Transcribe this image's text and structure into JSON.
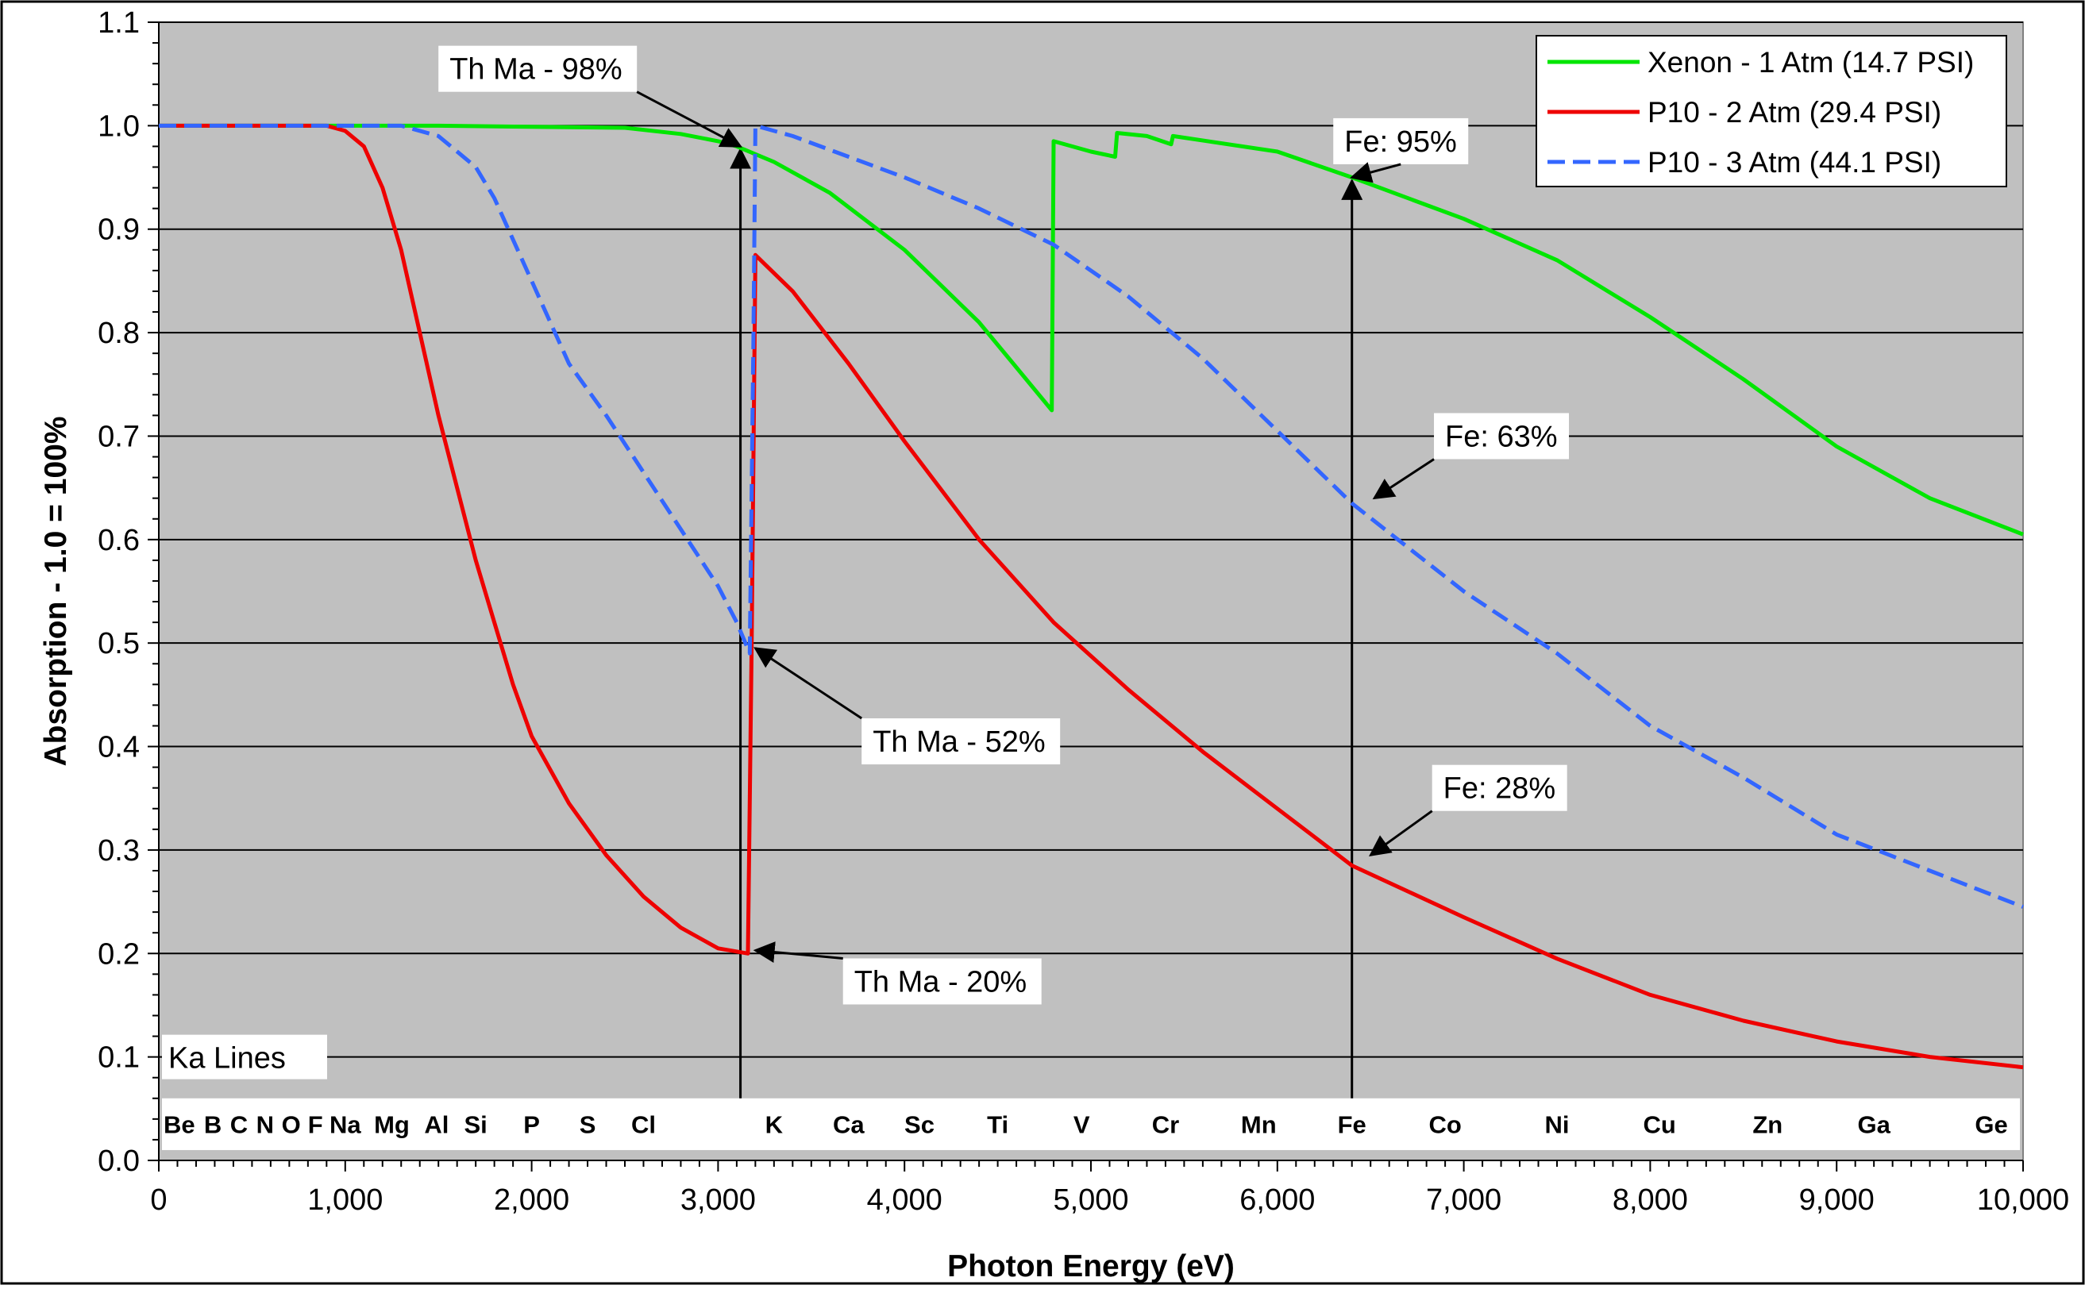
{
  "chart_data": {
    "type": "line",
    "xlabel": "Photon Energy (eV)",
    "ylabel": "Absorption - 1.0 = 100%",
    "xlim": [
      0,
      10000
    ],
    "ylim": [
      0,
      1.1
    ],
    "x_ticks": [
      0,
      1000,
      2000,
      3000,
      4000,
      5000,
      6000,
      7000,
      8000,
      9000,
      10000
    ],
    "x_tick_labels": [
      "0",
      "1,000",
      "2,000",
      "3,000",
      "4,000",
      "5,000",
      "6,000",
      "7,000",
      "8,000",
      "9,000",
      "10,000"
    ],
    "y_ticks": [
      0,
      0.1,
      0.2,
      0.3,
      0.4,
      0.5,
      0.6,
      0.7,
      0.8,
      0.9,
      1.0,
      1.1
    ],
    "y_tick_labels": [
      "0.0",
      "0.1",
      "0.2",
      "0.3",
      "0.4",
      "0.5",
      "0.6",
      "0.7",
      "0.8",
      "0.9",
      "1.0",
      "1.1"
    ],
    "grid": "horizontal",
    "background": "#c0c0c0",
    "legend_position": "top-right",
    "series": [
      {
        "name": "Xenon - 1 Atm (14.7 PSI)",
        "color": "#00e600",
        "style": "solid",
        "points": [
          [
            0,
            1.0
          ],
          [
            1500,
            1.0
          ],
          [
            2500,
            0.998
          ],
          [
            2800,
            0.992
          ],
          [
            3000,
            0.985
          ],
          [
            3100,
            0.98
          ],
          [
            3300,
            0.965
          ],
          [
            3600,
            0.935
          ],
          [
            4000,
            0.88
          ],
          [
            4400,
            0.81
          ],
          [
            4790,
            0.725
          ],
          [
            4800,
            0.985
          ],
          [
            5000,
            0.975
          ],
          [
            5130,
            0.97
          ],
          [
            5140,
            0.993
          ],
          [
            5300,
            0.99
          ],
          [
            5430,
            0.982
          ],
          [
            5440,
            0.99
          ],
          [
            6000,
            0.975
          ],
          [
            6400,
            0.95
          ],
          [
            7000,
            0.91
          ],
          [
            7500,
            0.87
          ],
          [
            8000,
            0.815
          ],
          [
            8500,
            0.755
          ],
          [
            9000,
            0.69
          ],
          [
            9500,
            0.64
          ],
          [
            10000,
            0.605
          ]
        ]
      },
      {
        "name": "P10 - 2 Atm (29.4 PSI)",
        "color": "#ee0000",
        "style": "solid",
        "points": [
          [
            0,
            1.0
          ],
          [
            900,
            1.0
          ],
          [
            1000,
            0.995
          ],
          [
            1100,
            0.98
          ],
          [
            1200,
            0.94
          ],
          [
            1300,
            0.88
          ],
          [
            1400,
            0.8
          ],
          [
            1500,
            0.72
          ],
          [
            1600,
            0.65
          ],
          [
            1700,
            0.58
          ],
          [
            1800,
            0.52
          ],
          [
            1900,
            0.46
          ],
          [
            2000,
            0.41
          ],
          [
            2200,
            0.345
          ],
          [
            2400,
            0.295
          ],
          [
            2600,
            0.255
          ],
          [
            2800,
            0.225
          ],
          [
            3000,
            0.205
          ],
          [
            3160,
            0.2
          ],
          [
            3180,
            0.5
          ],
          [
            3200,
            0.875
          ],
          [
            3400,
            0.84
          ],
          [
            3700,
            0.77
          ],
          [
            4000,
            0.695
          ],
          [
            4400,
            0.6
          ],
          [
            4800,
            0.52
          ],
          [
            5200,
            0.455
          ],
          [
            5600,
            0.395
          ],
          [
            6000,
            0.34
          ],
          [
            6400,
            0.285
          ],
          [
            7000,
            0.235
          ],
          [
            7500,
            0.195
          ],
          [
            8000,
            0.16
          ],
          [
            8500,
            0.135
          ],
          [
            9000,
            0.115
          ],
          [
            9500,
            0.1
          ],
          [
            10000,
            0.09
          ]
        ]
      },
      {
        "name": "P10 - 3 Atm (44.1 PSI)",
        "color": "#3366ff",
        "style": "dashed",
        "points": [
          [
            0,
            1.0
          ],
          [
            1300,
            1.0
          ],
          [
            1500,
            0.99
          ],
          [
            1700,
            0.96
          ],
          [
            1800,
            0.93
          ],
          [
            1900,
            0.89
          ],
          [
            2000,
            0.85
          ],
          [
            2100,
            0.81
          ],
          [
            2200,
            0.77
          ],
          [
            2400,
            0.72
          ],
          [
            2600,
            0.665
          ],
          [
            2800,
            0.61
          ],
          [
            3000,
            0.555
          ],
          [
            3100,
            0.52
          ],
          [
            3170,
            0.49
          ],
          [
            3190,
            0.8
          ],
          [
            3200,
            1.0
          ],
          [
            3400,
            0.99
          ],
          [
            3700,
            0.97
          ],
          [
            4000,
            0.95
          ],
          [
            4400,
            0.92
          ],
          [
            4800,
            0.885
          ],
          [
            5200,
            0.835
          ],
          [
            5600,
            0.775
          ],
          [
            6000,
            0.705
          ],
          [
            6400,
            0.635
          ],
          [
            7000,
            0.55
          ],
          [
            7500,
            0.49
          ],
          [
            8000,
            0.42
          ],
          [
            8500,
            0.37
          ],
          [
            9000,
            0.315
          ],
          [
            9500,
            0.28
          ],
          [
            10000,
            0.245
          ]
        ]
      }
    ],
    "ka_lines_box_label": "Ka Lines",
    "ka_lines": [
      {
        "label": "Be",
        "x": 110
      },
      {
        "label": "B",
        "x": 290
      },
      {
        "label": "C",
        "x": 430
      },
      {
        "label": "N",
        "x": 570
      },
      {
        "label": "O",
        "x": 710
      },
      {
        "label": "F",
        "x": 840
      },
      {
        "label": "Na",
        "x": 1000
      },
      {
        "label": "Mg",
        "x": 1250
      },
      {
        "label": "Al",
        "x": 1490
      },
      {
        "label": "Si",
        "x": 1700
      },
      {
        "label": "P",
        "x": 2000
      },
      {
        "label": "S",
        "x": 2300
      },
      {
        "label": "Cl",
        "x": 2600
      },
      {
        "label": "K",
        "x": 3300
      },
      {
        "label": "Ca",
        "x": 3700
      },
      {
        "label": "Sc",
        "x": 4080
      },
      {
        "label": "Ti",
        "x": 4500
      },
      {
        "label": "V",
        "x": 4950
      },
      {
        "label": "Cr",
        "x": 5400
      },
      {
        "label": "Mn",
        "x": 5900
      },
      {
        "label": "Fe",
        "x": 6400
      },
      {
        "label": "Co",
        "x": 6900
      },
      {
        "label": "Ni",
        "x": 7500
      },
      {
        "label": "Cu",
        "x": 8050
      },
      {
        "label": "Zn",
        "x": 8630
      },
      {
        "label": "Ga",
        "x": 9200
      },
      {
        "label": "Ge",
        "x": 9830
      }
    ],
    "vertical_markers": [
      {
        "x": 3120,
        "from": 0.06,
        "to": 0.98
      },
      {
        "x": 6400,
        "from": 0.06,
        "to": 0.95
      }
    ],
    "annotations": [
      {
        "text": "Th Ma - 98%",
        "box_x": 1500,
        "box_y": 1.055,
        "point": [
          3120,
          0.98
        ]
      },
      {
        "text": "Fe: 95%",
        "box_x": 6300,
        "box_y": 0.985,
        "point": [
          6400,
          0.95
        ]
      },
      {
        "text": "Fe: 63%",
        "box_x": 6840,
        "box_y": 0.7,
        "point": [
          6520,
          0.64
        ]
      },
      {
        "text": "Th Ma - 52%",
        "box_x": 3770,
        "box_y": 0.405,
        "point": [
          3200,
          0.495
        ]
      },
      {
        "text": "Fe: 28%",
        "box_x": 6830,
        "box_y": 0.36,
        "point": [
          6500,
          0.295
        ]
      },
      {
        "text": "Th Ma - 20%",
        "box_x": 3670,
        "box_y": 0.173,
        "point": [
          3200,
          0.203
        ]
      }
    ]
  }
}
